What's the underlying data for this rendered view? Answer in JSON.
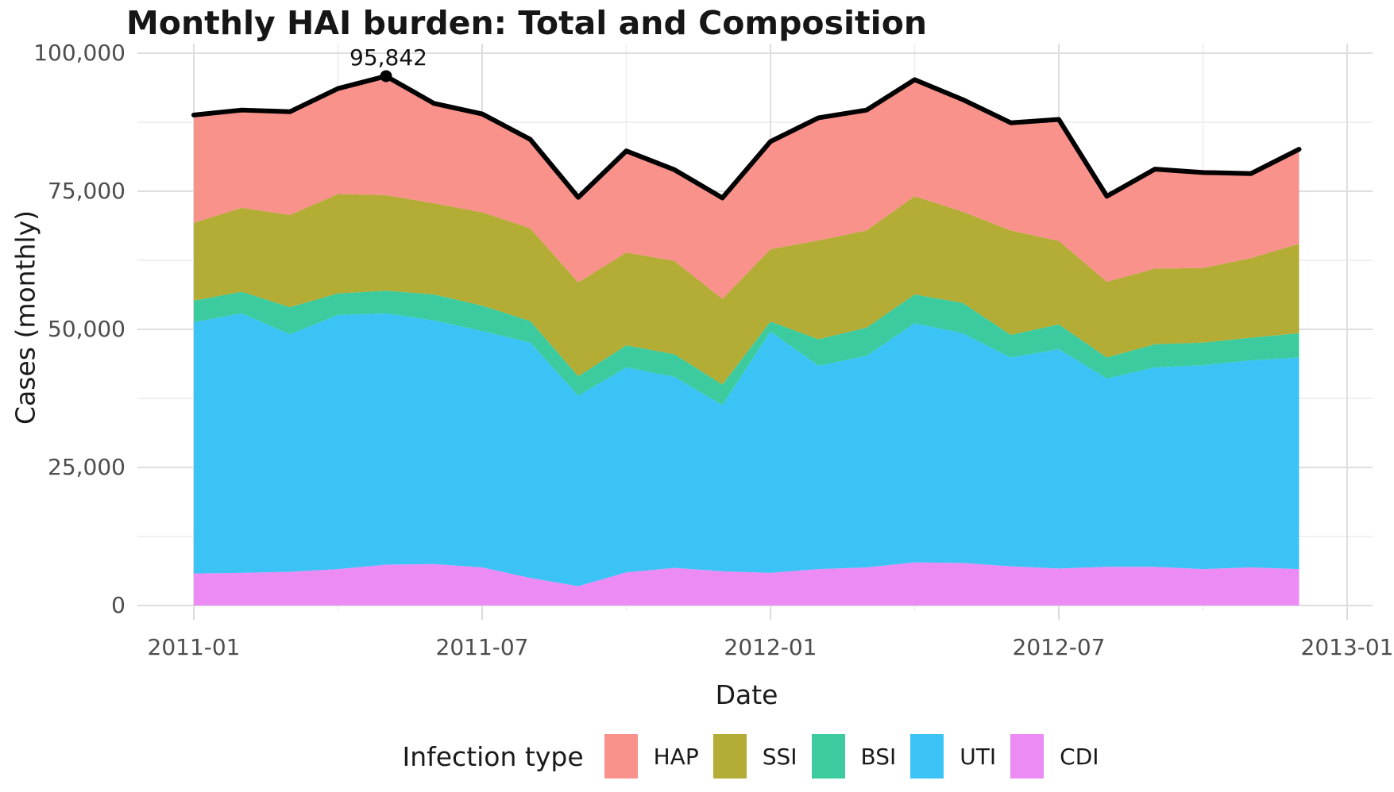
{
  "title": "Monthly HAI burden: Total and Composition",
  "axes": {
    "x": {
      "title": "Date",
      "ticks": [
        "2011-01",
        "2011-07",
        "2012-01",
        "2012-07",
        "2013-01"
      ]
    },
    "y": {
      "title": "Cases (monthly)",
      "ticks": [
        "100,000",
        "75,000",
        "50,000",
        "25,000",
        "0"
      ]
    }
  },
  "legend": {
    "title": "Infection type",
    "items": [
      {
        "label": "HAP",
        "color": "#F8928B"
      },
      {
        "label": "SSI",
        "color": "#B3AC35"
      },
      {
        "label": "BSI",
        "color": "#3BCB9F"
      },
      {
        "label": "UTI",
        "color": "#3CC3F6"
      },
      {
        "label": "CDI",
        "color": "#EC8BF3"
      }
    ]
  },
  "chart_data": {
    "type": "area",
    "stacked": true,
    "title": "Monthly HAI burden: Total and Composition",
    "xlabel": "Date",
    "ylabel": "Cases (monthly)",
    "ylim": [
      0,
      100000
    ],
    "x_axis_breaks": [
      "2011-01",
      "2011-07",
      "2012-01",
      "2012-07",
      "2013-01"
    ],
    "grid": true,
    "legend_position": "bottom",
    "legend_order": [
      "HAP",
      "SSI",
      "BSI",
      "UTI",
      "CDI"
    ],
    "x": [
      "2011-01",
      "2011-02",
      "2011-03",
      "2011-04",
      "2011-05",
      "2011-06",
      "2011-07",
      "2011-08",
      "2011-09",
      "2011-10",
      "2011-11",
      "2011-12",
      "2012-01",
      "2012-02",
      "2012-03",
      "2012-04",
      "2012-05",
      "2012-06",
      "2012-07",
      "2012-08",
      "2012-09",
      "2012-10",
      "2012-11",
      "2012-12"
    ],
    "series": [
      {
        "name": "CDI",
        "color": "#EC8BF3",
        "values": [
          5800,
          5900,
          6100,
          6600,
          7400,
          7500,
          6900,
          5000,
          3500,
          6000,
          6800,
          6200,
          5900,
          6600,
          6900,
          7800,
          7700,
          7100,
          6700,
          7000,
          7000,
          6600,
          6900,
          6600
        ]
      },
      {
        "name": "UTI",
        "color": "#3CC3F6",
        "values": [
          45500,
          47000,
          43000,
          46000,
          45500,
          44100,
          42800,
          42600,
          34500,
          37100,
          34600,
          30100,
          43700,
          36800,
          38300,
          43300,
          41600,
          37800,
          39700,
          34100,
          36100,
          36900,
          37500,
          38300
        ]
      },
      {
        "name": "BSI",
        "color": "#3BCB9F",
        "values": [
          3900,
          3900,
          4900,
          3900,
          4100,
          4700,
          4600,
          3900,
          3500,
          4000,
          4100,
          3700,
          1800,
          4800,
          5100,
          5200,
          5500,
          4100,
          4500,
          3800,
          4200,
          4100,
          4100,
          4400
        ]
      },
      {
        "name": "SSI",
        "color": "#B3AC35",
        "values": [
          14100,
          15200,
          16700,
          18000,
          17300,
          16500,
          16900,
          16800,
          17000,
          16800,
          16900,
          15500,
          13100,
          17900,
          17600,
          17800,
          16500,
          18900,
          15100,
          13700,
          13700,
          13500,
          14400,
          16200
        ]
      },
      {
        "name": "HAP",
        "color": "#F8928B",
        "values": [
          19500,
          17700,
          18700,
          19100,
          21542,
          18100,
          17800,
          16100,
          15400,
          18400,
          16500,
          18300,
          19500,
          22200,
          21800,
          21100,
          20300,
          19500,
          22000,
          15500,
          18000,
          17300,
          15300,
          17100
        ]
      }
    ],
    "total_line": {
      "name": "Total",
      "color": "#000000",
      "totals": [
        88800,
        89700,
        89400,
        93600,
        95842,
        90900,
        89000,
        84400,
        73900,
        82300,
        78900,
        73800,
        84000,
        88300,
        89700,
        95200,
        91600,
        87400,
        88000,
        74100,
        79000,
        78400,
        78200,
        82600
      ],
      "annotated_point": {
        "x": "2011-05",
        "value": 95842,
        "label": "95,842"
      }
    }
  }
}
